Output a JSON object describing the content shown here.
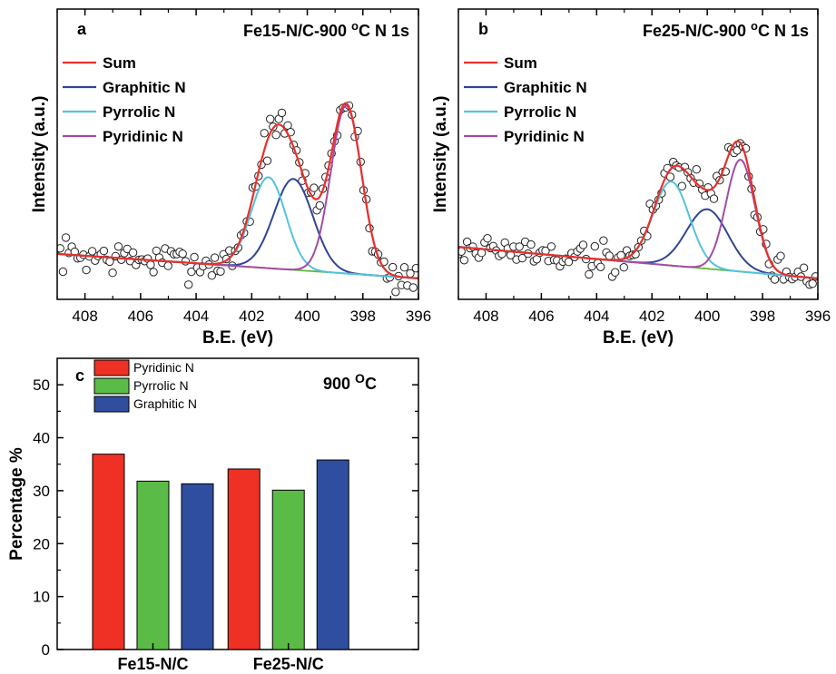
{
  "chart_data": [
    {
      "panel_label": "a",
      "type": "line",
      "title": "Fe15-N/C-900 ",
      "title_sup": "o",
      "title_rest": "C N 1s",
      "xlabel": "B.E. (eV)",
      "ylabel": "Intensity (a.u.)",
      "xlim": [
        409,
        396
      ],
      "x_reversed": true,
      "xticks": [
        408,
        406,
        404,
        402,
        400,
        398,
        396
      ],
      "y_ticks_shown": false,
      "legend_position": "top-left",
      "baseline": {
        "at409": 0.05,
        "at396": -0.02
      },
      "series": [
        {
          "name": "Sum",
          "color": "#e8302a"
        },
        {
          "name": "Graphitic N",
          "color": "#2f4595",
          "peak": {
            "center": 400.5,
            "amp": 0.26,
            "sigma": 0.7
          }
        },
        {
          "name": "Pyrrolic N",
          "color": "#55c2de",
          "peak": {
            "center": 401.4,
            "amp": 0.26,
            "sigma": 0.62
          }
        },
        {
          "name": "Pyridinic N",
          "color": "#a24da3",
          "peak": {
            "center": 398.6,
            "amp": 0.48,
            "sigma": 0.55
          }
        }
      ],
      "baseline_color": "#5fb83f",
      "scatter": {
        "noise": 0.035,
        "seed": 7
      }
    },
    {
      "panel_label": "b",
      "type": "line",
      "title": "Fe25-N/C-900 ",
      "title_sup": "o",
      "title_rest": "C N 1s",
      "xlabel": "B.E. (eV)",
      "ylabel": "Intensity (a.u.)",
      "xlim": [
        409,
        396
      ],
      "x_reversed": true,
      "xticks": [
        408,
        406,
        404,
        402,
        400,
        398,
        396
      ],
      "y_ticks_shown": false,
      "legend_position": "top-left",
      "baseline": {
        "at409": 0.07,
        "at396": -0.02
      },
      "series": [
        {
          "name": "Sum",
          "color": "#e8302a"
        },
        {
          "name": "Graphitic N",
          "color": "#2f4595",
          "peak": {
            "center": 400.0,
            "amp": 0.17,
            "sigma": 0.75
          }
        },
        {
          "name": "Pyrrolic N",
          "color": "#55c2de",
          "peak": {
            "center": 401.3,
            "amp": 0.24,
            "sigma": 0.65
          }
        },
        {
          "name": "Pyridinic N",
          "color": "#a24da3",
          "peak": {
            "center": 398.8,
            "amp": 0.32,
            "sigma": 0.52
          }
        }
      ],
      "baseline_color": "#5fb83f",
      "scatter": {
        "noise": 0.035,
        "seed": 19
      }
    },
    {
      "panel_label": "c",
      "type": "bar",
      "annotation": "900 ",
      "annotation_sup": "O",
      "annotation_rest": "C",
      "ylabel": "Percentage %",
      "xlabel": "",
      "ylim": [
        0,
        55
      ],
      "yticks": [
        0,
        10,
        20,
        30,
        40,
        50
      ],
      "categories": [
        "Fe15-N/C",
        "Fe25-N/C"
      ],
      "legend_position": "top-left",
      "series": [
        {
          "name": "Pyridinic N",
          "color": "#ee3124",
          "values": [
            36.9,
            34.1
          ]
        },
        {
          "name": "Pyrrolic N",
          "color": "#5bbb47",
          "values": [
            31.8,
            30.1
          ]
        },
        {
          "name": "Graphitic N",
          "color": "#2f4ea0",
          "values": [
            31.3,
            35.8
          ]
        }
      ]
    }
  ]
}
